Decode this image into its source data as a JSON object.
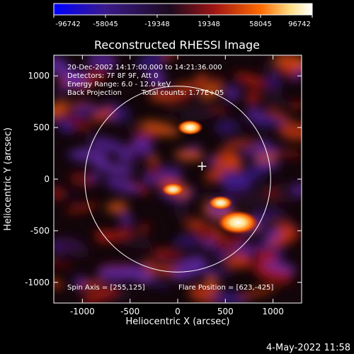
{
  "chart_data": {
    "type": "heatmap",
    "title": "Reconstructed RHESSI Image",
    "xlabel": "Heliocentric X (arcsec)",
    "ylabel": "Heliocentric Y (arcsec)",
    "xlim": [
      -1300,
      1300
    ],
    "ylim": [
      -1200,
      1200
    ],
    "xticks": [
      -1000,
      -500,
      0,
      500,
      1000
    ],
    "yticks": [
      -1000,
      -500,
      0,
      500,
      1000
    ],
    "colorbar": {
      "min": -96742,
      "max": 96742,
      "tick_labels": [
        "-96742",
        "-58045",
        "-19348",
        "19348",
        "58045",
        "96742"
      ],
      "colors": [
        "#0000ff",
        "#3b1a8a",
        "#1c0a1e",
        "#9e1414",
        "#ff6a00",
        "#ffe18a",
        "#ffffff"
      ]
    },
    "annotations": {
      "time_range": "20-Dec-2002 14:17:00.000 to 14:21:36.000",
      "detectors": "Detectors: 7F 8F 9F, Att 0",
      "energy_range": "Energy Range: 6.0 - 12.0 keV",
      "method": "Back Projection",
      "total_counts": "Total counts: 1.77E+05",
      "spin_axis": "Spin Axis = [255,125]",
      "flare_position": "Flare Position = [623,-425]"
    },
    "solar_limb": {
      "center": [
        0,
        0
      ],
      "radius_arcsec": 975
    },
    "spin_axis_marker": [
      255,
      125
    ],
    "sources": [
      {
        "x": 630,
        "y": -420,
        "value": 96742
      },
      {
        "x": 450,
        "y": -230,
        "value": 45000
      },
      {
        "x": -50,
        "y": -100,
        "value": 40000
      },
      {
        "x": 130,
        "y": 500,
        "value": 50000
      }
    ],
    "colors": {
      "limb": "#ffffff",
      "marker": "#ffffff",
      "background": "#000000"
    }
  },
  "footer": {
    "timestamp": "4-May-2022 11:58"
  }
}
